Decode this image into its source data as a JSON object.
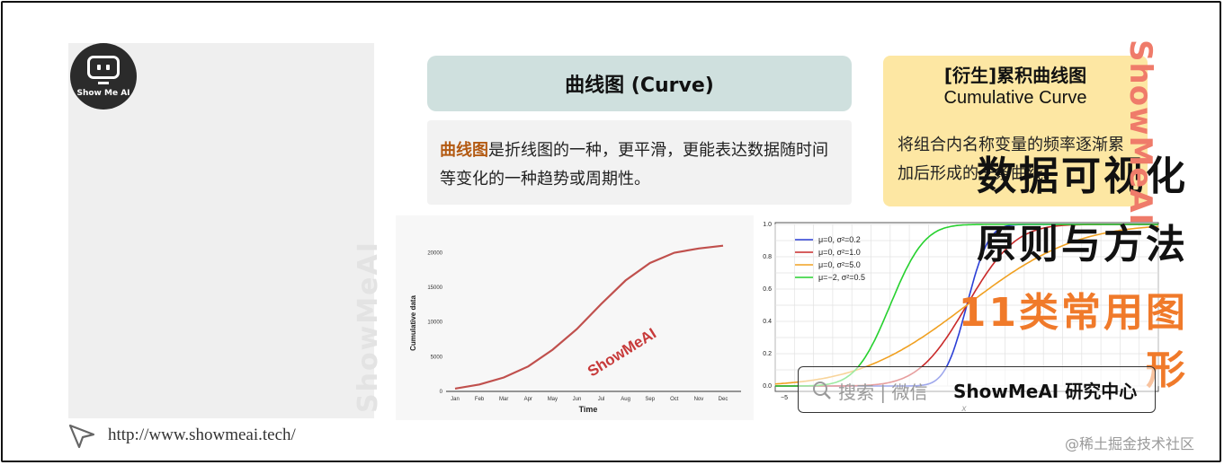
{
  "logo": {
    "text": "Show Me AI"
  },
  "left": {
    "title_line1": "数据可视化",
    "title_line2": "原则与方法",
    "title_line3": "11类常用图形",
    "watermark": "ShowMeAI",
    "url": "http://www.showmeai.tech/"
  },
  "curve": {
    "header": "曲线图 (Curve)",
    "desc_highlight": "曲线图",
    "desc_rest": "是折线图的一种，更平滑，更能表达数据随时间等变化的一种趋势或周期性。"
  },
  "cumulative": {
    "title": "[衍生]累积曲线图",
    "subtitle": "Cumulative Curve",
    "desc": "将组合内名称变量的频率逐渐累加后形成的一条曲线。",
    "side_watermark": "ShowMeAI"
  },
  "search": {
    "prefix": "搜索 | 微信",
    "brand": "ShowMeAI 研究中心"
  },
  "credit": "@稀土掘金技术社区",
  "chart_data": [
    {
      "type": "line",
      "xlabel": "Time",
      "ylabel": "Cumulative data",
      "categories": [
        "Jan",
        "Feb",
        "Mar",
        "Apr",
        "May",
        "Jun",
        "Jul",
        "Aug",
        "Sep",
        "Oct",
        "Nov",
        "Dec"
      ],
      "series": [
        {
          "values": [
            400,
            1000,
            2000,
            3600,
            6000,
            9000,
            12600,
            16000,
            18500,
            20000,
            20600,
            21000
          ],
          "color": "#c0504d"
        }
      ],
      "ylim": [
        0,
        22000
      ],
      "yticks": [
        0,
        5000,
        10000,
        15000,
        20000
      ],
      "watermark": "ShowMeAI"
    },
    {
      "type": "line",
      "xlabel": "x",
      "xlim": [
        -5,
        5
      ],
      "ylim": [
        0,
        1
      ],
      "xticks": [
        "−5"
      ],
      "yticks": [
        "0.0",
        "0.2",
        "0.4",
        "0.6",
        "0.8",
        "1.0"
      ],
      "legend_position": "top-left",
      "series": [
        {
          "name": "μ=0, σ²=0.2",
          "mu": 0,
          "var": 0.2,
          "color": "#2b3fd6"
        },
        {
          "name": "μ=0, σ²=1.0",
          "mu": 0,
          "var": 1.0,
          "color": "#c92a2a"
        },
        {
          "name": "μ=0, σ²=5.0",
          "mu": 0,
          "var": 5.0,
          "color": "#f0a020"
        },
        {
          "name": "μ=−2, σ²=0.5",
          "mu": -2,
          "var": 0.5,
          "color": "#27d12f"
        }
      ]
    }
  ]
}
